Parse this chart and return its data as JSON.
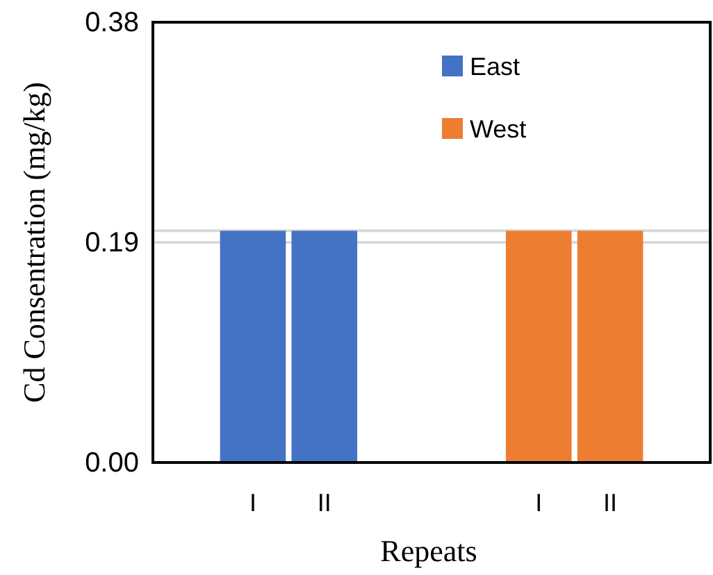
{
  "chart_data": {
    "type": "bar",
    "xlabel": "Repeats",
    "ylabel": "Cd Consentration (mg/kg)",
    "categories": [
      "I",
      "II",
      null,
      null,
      "I",
      "II"
    ],
    "series": [
      {
        "name": "East",
        "color": "#4472c4",
        "values": [
          0.2,
          0.2,
          null,
          null,
          null,
          null
        ]
      },
      {
        "name": "West",
        "color": "#ed7d31",
        "values": [
          null,
          null,
          null,
          null,
          0.2,
          0.2
        ]
      }
    ],
    "ylim": [
      0,
      0.38
    ],
    "yticks": [
      {
        "value": 0,
        "label": "0.00"
      },
      0.19,
      0.38
    ],
    "grid": "y",
    "ref_lines": [
      {
        "axis": "y",
        "value": 0.2,
        "color": "#d9d9d9"
      }
    ],
    "legend": "top right"
  }
}
